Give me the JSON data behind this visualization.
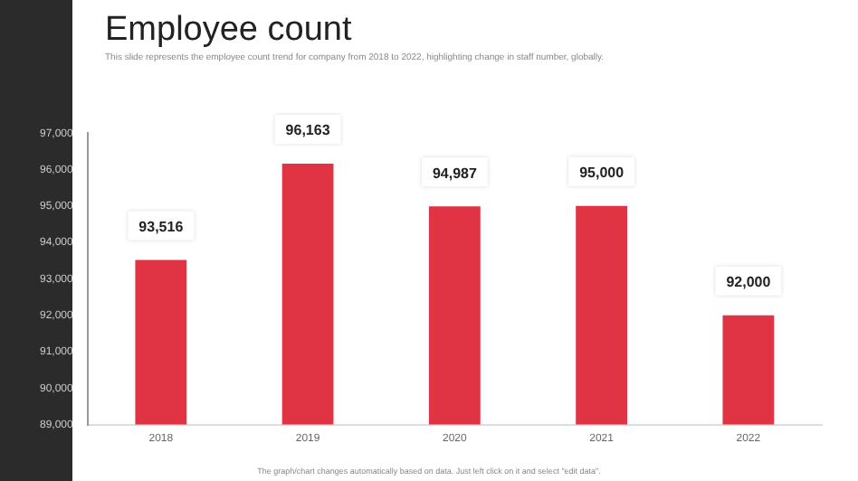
{
  "chart_data": {
    "type": "bar",
    "title": "Employee count",
    "subtitle": "This slide represents the employee count trend for company from 2018 to 2022, highlighting change in staff number, globally.",
    "categories": [
      "2018",
      "2019",
      "2020",
      "2021",
      "2022"
    ],
    "values": [
      93516,
      96163,
      94987,
      95000,
      92000
    ],
    "color": "#e03444",
    "value_labels": [
      "93,516",
      "96,163",
      "94,987",
      "95,000",
      "92,000"
    ],
    "ylim": [
      89000,
      97000
    ],
    "yticks": [
      {
        "value": 89000,
        "label": "89,000"
      },
      {
        "value": 90000,
        "label": "90,000"
      },
      {
        "value": 91000,
        "label": "91,000"
      },
      {
        "value": 92000,
        "label": "92,000"
      },
      {
        "value": 93000,
        "label": "93,000"
      },
      {
        "value": 94000,
        "label": "94,000"
      },
      {
        "value": 95000,
        "label": "95,000"
      },
      {
        "value": 96000,
        "label": "96,000"
      },
      {
        "value": 97000,
        "label": "97,000"
      }
    ],
    "grid": false,
    "legend": false,
    "annotations": [
      "The graph/chart changes automatically based on data. Just left click on it and select \"edit data\"."
    ]
  }
}
